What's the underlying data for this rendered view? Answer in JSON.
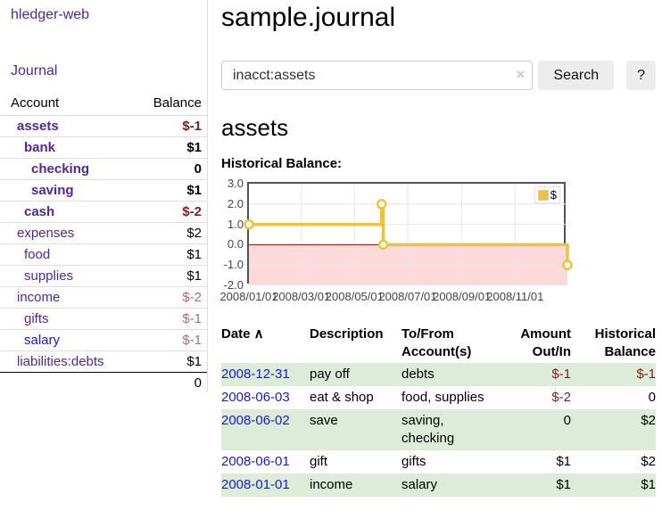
{
  "app": {
    "brand": "hledger-web"
  },
  "nav": {
    "journal": "Journal"
  },
  "colors": {
    "link_purple": "#51279b",
    "link_blue": "#1919dd",
    "negative_strong": "#8b1a1a",
    "negative_soft": "#b36b6b",
    "row_green": "#dcecd8"
  },
  "sidebar": {
    "header": {
      "account": "Account",
      "balance": "Balance"
    },
    "accounts": [
      {
        "name": "assets",
        "balance": "$-1",
        "depth": 1,
        "emph": true,
        "neg": "strong"
      },
      {
        "name": "bank",
        "balance": "$1",
        "depth": 2,
        "emph": true
      },
      {
        "name": "checking",
        "balance": "0",
        "depth": 3,
        "emph": true
      },
      {
        "name": "saving",
        "balance": "$1",
        "depth": 3,
        "emph": true
      },
      {
        "name": "cash",
        "balance": "$-2",
        "depth": 2,
        "emph": true,
        "neg": "strong"
      },
      {
        "name": "expenses",
        "balance": "$2",
        "depth": 1
      },
      {
        "name": "food",
        "balance": "$1",
        "depth": 2
      },
      {
        "name": "supplies",
        "balance": "$1",
        "depth": 2
      },
      {
        "name": "income",
        "balance": "$-2",
        "depth": 1,
        "neg": "soft"
      },
      {
        "name": "gifts",
        "balance": "$-1",
        "depth": 2,
        "neg": "soft"
      },
      {
        "name": "salary",
        "balance": "$-1",
        "depth": 2,
        "neg": "soft",
        "link": "blue"
      },
      {
        "name": "liabilities:debts",
        "balance": "$1",
        "depth": 1
      }
    ],
    "total": "0"
  },
  "main": {
    "title": "sample.journal",
    "search": {
      "value": "inacct:assets",
      "clear_icon": "×",
      "search_button": "Search",
      "help_button": "?"
    },
    "register": {
      "heading": "assets",
      "chart_title": "Historical Balance:",
      "table": {
        "columns": [
          {
            "label": "Date",
            "sort": "∧",
            "align": "left"
          },
          {
            "label": "Description",
            "align": "left"
          },
          {
            "label": "To/From Account(s)",
            "align": "left"
          },
          {
            "label": "Amount Out/In",
            "align": "right"
          },
          {
            "label": "Historical Balance",
            "align": "right"
          }
        ],
        "rows": [
          {
            "date": "2008-12-31",
            "description": "pay off",
            "accounts": "debts",
            "amount": "$-1",
            "balance": "$-1"
          },
          {
            "date": "2008-06-03",
            "description": "eat & shop",
            "accounts": "food, supplies",
            "amount": "$-2",
            "balance": "0"
          },
          {
            "date": "2008-06-02",
            "description": "save",
            "accounts": "saving, checking",
            "amount": "0",
            "balance": "$2"
          },
          {
            "date": "2008-06-01",
            "description": "gift",
            "accounts": "gifts",
            "amount": "$1",
            "balance": "$2"
          },
          {
            "date": "2008-01-01",
            "description": "income",
            "accounts": "salary",
            "amount": "$1",
            "balance": "$1"
          }
        ]
      }
    }
  },
  "chart_data": {
    "type": "line",
    "title": "Historical Balance:",
    "legend": "$",
    "legend_position": "top-right",
    "step": true,
    "grid": true,
    "x_range": [
      "2008-01-01",
      "2008-12-31"
    ],
    "y_range": [
      -2,
      3
    ],
    "y_ticks": [
      "3.0",
      "2.0",
      "1.0",
      "0.0",
      "-1.0",
      "-2.0"
    ],
    "x_ticks": [
      "2008/01/01",
      "2008/03/01",
      "2008/05/01",
      "2008/07/01",
      "2008/09/01",
      "2008/11/01"
    ],
    "series": [
      {
        "name": "$",
        "color": "#edc240",
        "points": [
          {
            "date": "2008-01-01",
            "value": 1
          },
          {
            "date": "2008-06-01",
            "value": 2
          },
          {
            "date": "2008-06-03",
            "value": 0
          },
          {
            "date": "2008-12-31",
            "value": -1
          }
        ]
      }
    ],
    "negative_region_color": "#fcdadb",
    "zero_line_color": "#a40000",
    "gridline_color": "#e6e6e6",
    "border_color": "#545454"
  }
}
